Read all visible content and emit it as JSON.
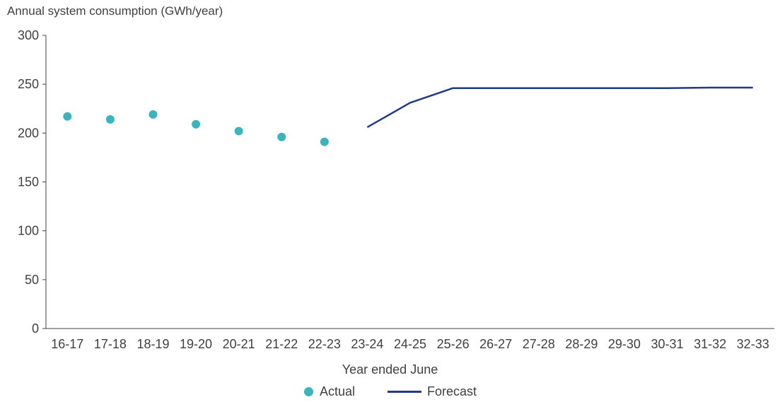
{
  "chart_data": {
    "type": "line",
    "ylabel": "Annual system consumption (GWh/year)",
    "xlabel": "Year ended June",
    "ylim": [
      0,
      300
    ],
    "yticks": [
      0,
      50,
      100,
      150,
      200,
      250,
      300
    ],
    "categories": [
      "16-17",
      "17-18",
      "18-19",
      "19-20",
      "20-21",
      "21-22",
      "22-23",
      "23-24",
      "24-25",
      "25-26",
      "26-27",
      "27-28",
      "28-29",
      "29-30",
      "30-31",
      "31-32",
      "32-33"
    ],
    "series": [
      {
        "name": "Actual",
        "style": "markers",
        "color": "#3bb4bd",
        "values": [
          217,
          214,
          219,
          209,
          202,
          196,
          191,
          null,
          null,
          null,
          null,
          null,
          null,
          null,
          null,
          null,
          null
        ]
      },
      {
        "name": "Forecast",
        "style": "line",
        "color": "#1f3a8a",
        "values": [
          null,
          null,
          null,
          null,
          null,
          null,
          null,
          206,
          231,
          246,
          246,
          246,
          246,
          246,
          246,
          246.5,
          246.5
        ]
      }
    ],
    "grid": false,
    "legend_position": "bottom-center"
  }
}
